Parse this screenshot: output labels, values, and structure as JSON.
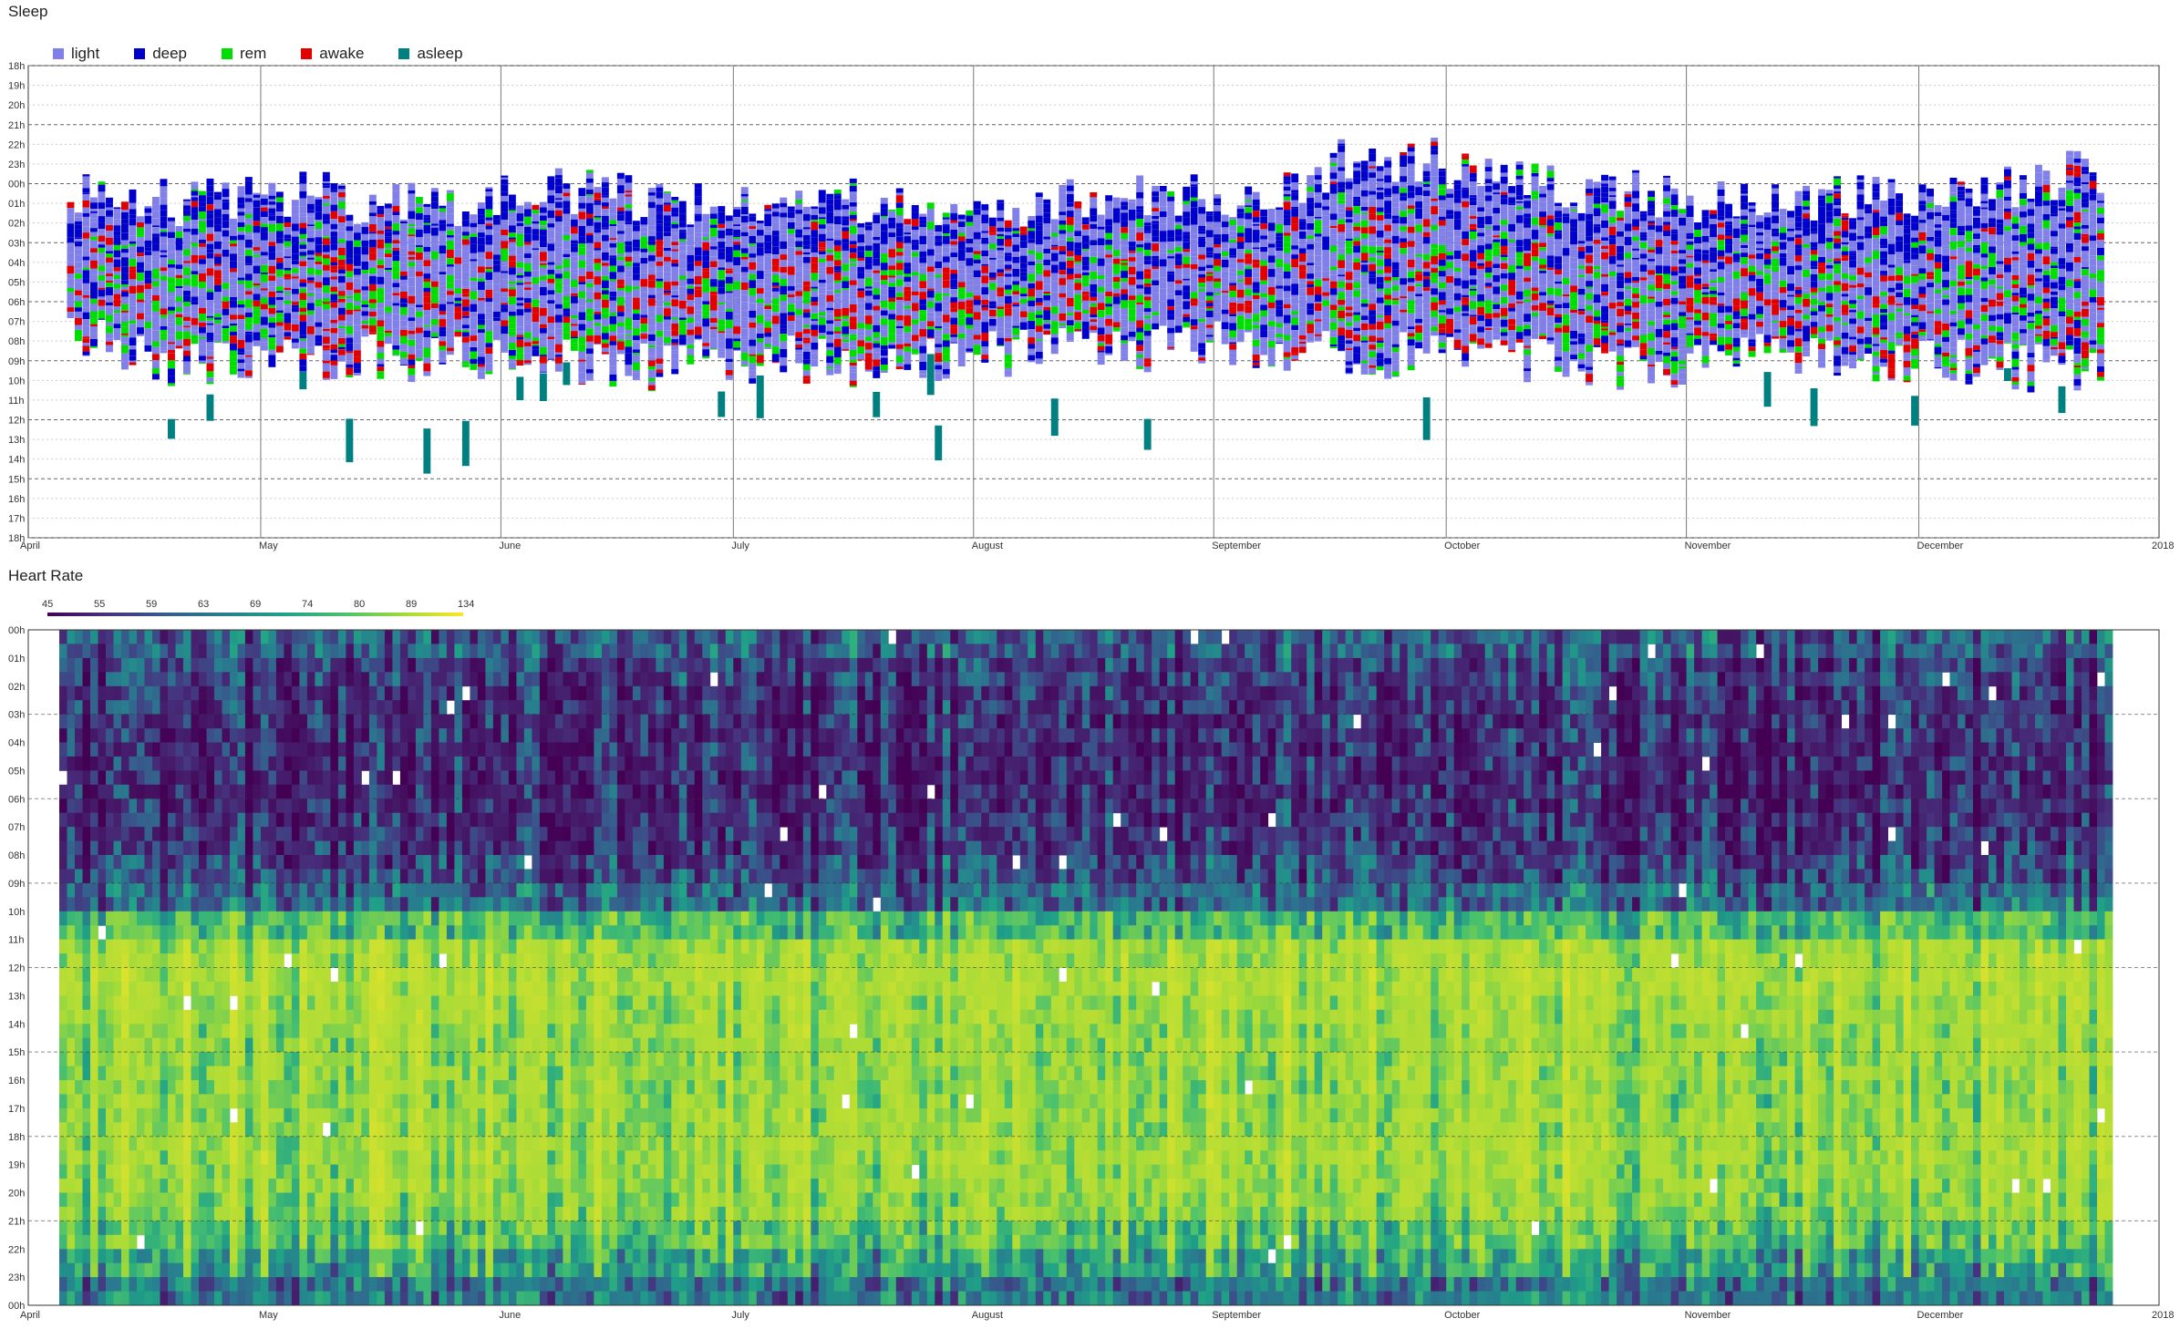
{
  "panels": {
    "sleep_title": "Sleep",
    "heart_title": "Heart Rate"
  },
  "chart_data": [
    {
      "type": "bar",
      "title": "Sleep",
      "legend_position": "top-left",
      "series": [
        {
          "name": "light",
          "color": "#8080e8"
        },
        {
          "name": "deep",
          "color": "#0000cc"
        },
        {
          "name": "rem",
          "color": "#00dd00"
        },
        {
          "name": "awake",
          "color": "#e00000"
        },
        {
          "name": "asleep",
          "color": "#008080"
        }
      ],
      "y_ticks": [
        "18h",
        "19h",
        "20h",
        "21h",
        "22h",
        "23h",
        "00h",
        "01h",
        "02h",
        "03h",
        "04h",
        "05h",
        "06h",
        "07h",
        "08h",
        "09h",
        "10h",
        "11h",
        "12h",
        "13h",
        "14h",
        "15h",
        "16h",
        "17h",
        "18h"
      ],
      "x_ticks": [
        "April",
        "May",
        "June",
        "July",
        "August",
        "September",
        "October",
        "November",
        "December",
        "2018"
      ],
      "x_range": [
        "2017-04-01",
        "2018-01-01"
      ],
      "y_range_hours": [
        -6,
        18
      ],
      "grid": true,
      "nights_sampled": [
        {
          "date": "2017-04-05",
          "start": 0.5,
          "end": 7.2
        },
        {
          "date": "2017-04-20",
          "start": 1.0,
          "end": 9.3
        },
        {
          "date": "2017-05-05",
          "start": 0.4,
          "end": 8.6
        },
        {
          "date": "2017-05-20",
          "start": 1.2,
          "end": 9.0
        },
        {
          "date": "2017-06-05",
          "start": 0.3,
          "end": 8.8
        },
        {
          "date": "2017-06-20",
          "start": 0.9,
          "end": 9.4
        },
        {
          "date": "2017-07-05",
          "start": 0.6,
          "end": 8.9
        },
        {
          "date": "2017-07-20",
          "start": 1.1,
          "end": 9.2
        },
        {
          "date": "2017-08-05",
          "start": 1.5,
          "end": 8.7
        },
        {
          "date": "2017-08-20",
          "start": 0.5,
          "end": 8.4
        },
        {
          "date": "2017-09-05",
          "start": 0.9,
          "end": 8.1
        },
        {
          "date": "2017-09-20",
          "start": -1.5,
          "end": 8.8
        },
        {
          "date": "2017-10-05",
          "start": -0.8,
          "end": 8.5
        },
        {
          "date": "2017-10-20",
          "start": 0.4,
          "end": 9.3
        },
        {
          "date": "2017-11-05",
          "start": 1.0,
          "end": 9.0
        },
        {
          "date": "2017-11-20",
          "start": 0.5,
          "end": 8.7
        },
        {
          "date": "2017-12-05",
          "start": 0.6,
          "end": 9.1
        },
        {
          "date": "2017-12-20",
          "start": -0.5,
          "end": 9.5
        }
      ]
    },
    {
      "type": "heatmap",
      "title": "Heart Rate",
      "colorbar_ticks": [
        45,
        55,
        59,
        63,
        69,
        74,
        80,
        89,
        134
      ],
      "colormap": [
        "#440154",
        "#46327e",
        "#365c8d",
        "#277f8e",
        "#1fa187",
        "#4ac16d",
        "#a0da39",
        "#fde725"
      ],
      "y_ticks": [
        "00h",
        "01h",
        "02h",
        "03h",
        "04h",
        "05h",
        "06h",
        "07h",
        "08h",
        "09h",
        "10h",
        "11h",
        "12h",
        "13h",
        "14h",
        "15h",
        "16h",
        "17h",
        "18h",
        "19h",
        "20h",
        "21h",
        "22h",
        "23h",
        "00h"
      ],
      "x_ticks": [
        "April",
        "May",
        "June",
        "July",
        "August",
        "September",
        "October",
        "November",
        "December",
        "2018"
      ],
      "x_range": [
        "2017-04-01",
        "2018-01-01"
      ],
      "hourly_profile_bpm": [
        60,
        56,
        54,
        53,
        52,
        52,
        53,
        54,
        57,
        62,
        78,
        88,
        90,
        87,
        86,
        86,
        85,
        86,
        87,
        86,
        84,
        78,
        70,
        64
      ]
    }
  ]
}
